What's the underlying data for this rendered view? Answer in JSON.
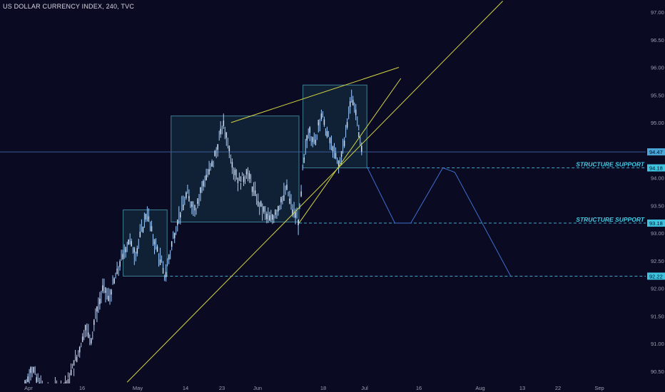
{
  "header": {
    "title": "US DOLLAR CURRENCY INDEX, 240, TVC"
  },
  "colors": {
    "background": "#0a0a22",
    "candle": "#9ecbff",
    "box_fill": "#1e4a5a",
    "box_stroke": "#3d7f92",
    "trendline": "#d4d443",
    "projection": "#3f6fcf",
    "support_line": "#3fa7c7",
    "price_line": "#3a5a9a",
    "support_label": "#3fd0e8",
    "price_badge": "#4aa6d6",
    "axis_text": "#9aa0b0"
  },
  "chart_data": {
    "type": "line",
    "title": "US DOLLAR CURRENCY INDEX, 240, TVC",
    "x_tick_labels": [
      "Apr",
      "16",
      "May",
      "14",
      "23",
      "Jun",
      "18",
      "Jul",
      "16",
      "Aug",
      "13",
      "22",
      "Sep"
    ],
    "y_tick_labels": [
      "97.00",
      "96.50",
      "96.00",
      "95.50",
      "95.00",
      "94.50",
      "94.00",
      "93.50",
      "93.00",
      "92.50",
      "92.00",
      "91.50",
      "91.00",
      "90.50"
    ],
    "ylim": [
      90.3,
      97.1
    ],
    "current_price": "94.47",
    "support_levels": [
      {
        "value": 94.18,
        "label": "94.18",
        "text": "STRUCTURE SUPPORT"
      },
      {
        "value": 93.18,
        "label": "93.18",
        "text": "STRUCTURE SUPPORT"
      },
      {
        "value": 92.22,
        "label": "92.22",
        "text": ""
      }
    ],
    "series": [
      {
        "values": [
          {
            "t": 0.0,
            "v": 90.1
          },
          {
            "t": 2.0,
            "v": 90.3
          },
          {
            "t": 3.0,
            "v": 90.6
          },
          {
            "t": 4.0,
            "v": 90.4
          },
          {
            "t": 6.0,
            "v": 90.2
          },
          {
            "t": 8.0,
            "v": 90.1
          },
          {
            "t": 10.0,
            "v": 90.2
          },
          {
            "t": 12.0,
            "v": 90.3
          },
          {
            "t": 13.5,
            "v": 90.55
          },
          {
            "t": 15.0,
            "v": 90.9
          },
          {
            "t": 16.5,
            "v": 91.3
          },
          {
            "t": 18.0,
            "v": 91.1
          },
          {
            "t": 19.5,
            "v": 91.6
          },
          {
            "t": 21.0,
            "v": 92.0
          },
          {
            "t": 22.5,
            "v": 91.8
          },
          {
            "t": 24.5,
            "v": 92.3
          },
          {
            "t": 26.0,
            "v": 92.6
          },
          {
            "t": 27.5,
            "v": 92.9
          },
          {
            "t": 29.0,
            "v": 92.6
          },
          {
            "t": 30.5,
            "v": 93.0
          },
          {
            "t": 32.0,
            "v": 93.4
          },
          {
            "t": 33.5,
            "v": 92.9
          },
          {
            "t": 35.0,
            "v": 92.6
          },
          {
            "t": 36.5,
            "v": 92.22
          },
          {
            "t": 38.5,
            "v": 92.9
          },
          {
            "t": 40.0,
            "v": 93.3
          },
          {
            "t": 42.0,
            "v": 93.7
          },
          {
            "t": 44.0,
            "v": 93.4
          },
          {
            "t": 46.0,
            "v": 93.9
          },
          {
            "t": 48.0,
            "v": 94.2
          },
          {
            "t": 49.5,
            "v": 94.5
          },
          {
            "t": 51.0,
            "v": 95.0
          },
          {
            "t": 52.0,
            "v": 94.7
          },
          {
            "t": 53.5,
            "v": 94.2
          },
          {
            "t": 55.0,
            "v": 93.9
          },
          {
            "t": 57.0,
            "v": 94.1
          },
          {
            "t": 59.0,
            "v": 93.7
          },
          {
            "t": 61.0,
            "v": 93.4
          },
          {
            "t": 63.0,
            "v": 93.2
          },
          {
            "t": 65.0,
            "v": 93.5
          },
          {
            "t": 67.0,
            "v": 93.8
          },
          {
            "t": 68.5,
            "v": 93.4
          },
          {
            "t": 70.0,
            "v": 93.18
          },
          {
            "t": 71.0,
            "v": 94.2
          },
          {
            "t": 72.5,
            "v": 94.9
          },
          {
            "t": 74.0,
            "v": 94.6
          },
          {
            "t": 75.5,
            "v": 95.2
          },
          {
            "t": 77.0,
            "v": 94.8
          },
          {
            "t": 78.5,
            "v": 94.5
          },
          {
            "t": 80.0,
            "v": 94.2
          },
          {
            "t": 81.5,
            "v": 94.7
          },
          {
            "t": 83.0,
            "v": 95.5
          },
          {
            "t": 84.0,
            "v": 95.3
          },
          {
            "t": 85.0,
            "v": 94.8
          },
          {
            "t": 86.0,
            "v": 94.47
          }
        ]
      }
    ],
    "boxes": [
      {
        "t0": 26.0,
        "t1": 37.0,
        "v0": 92.22,
        "v1": 93.42
      },
      {
        "t0": 38.0,
        "t1": 70.0,
        "v0": 93.2,
        "v1": 95.12
      },
      {
        "t0": 71.0,
        "t1": 87.0,
        "v0": 94.18,
        "v1": 95.68
      }
    ],
    "trendlines": [
      {
        "t0": 27.0,
        "v0": 90.3,
        "t1": 121.0,
        "v1": 97.2
      },
      {
        "t0": 70.0,
        "v0": 93.18,
        "t1": 95.5,
        "v1": 95.8
      },
      {
        "t0": 53.0,
        "v0": 95.0,
        "t1": 95.0,
        "v1": 96.0
      }
    ],
    "projection": [
      {
        "t": 87.0,
        "v": 94.2
      },
      {
        "t": 94.0,
        "v": 93.18
      },
      {
        "t": 98.0,
        "v": 93.18
      },
      {
        "t": 106.0,
        "v": 94.18
      },
      {
        "t": 109.0,
        "v": 94.1
      },
      {
        "t": 123.0,
        "v": 92.22
      }
    ]
  }
}
